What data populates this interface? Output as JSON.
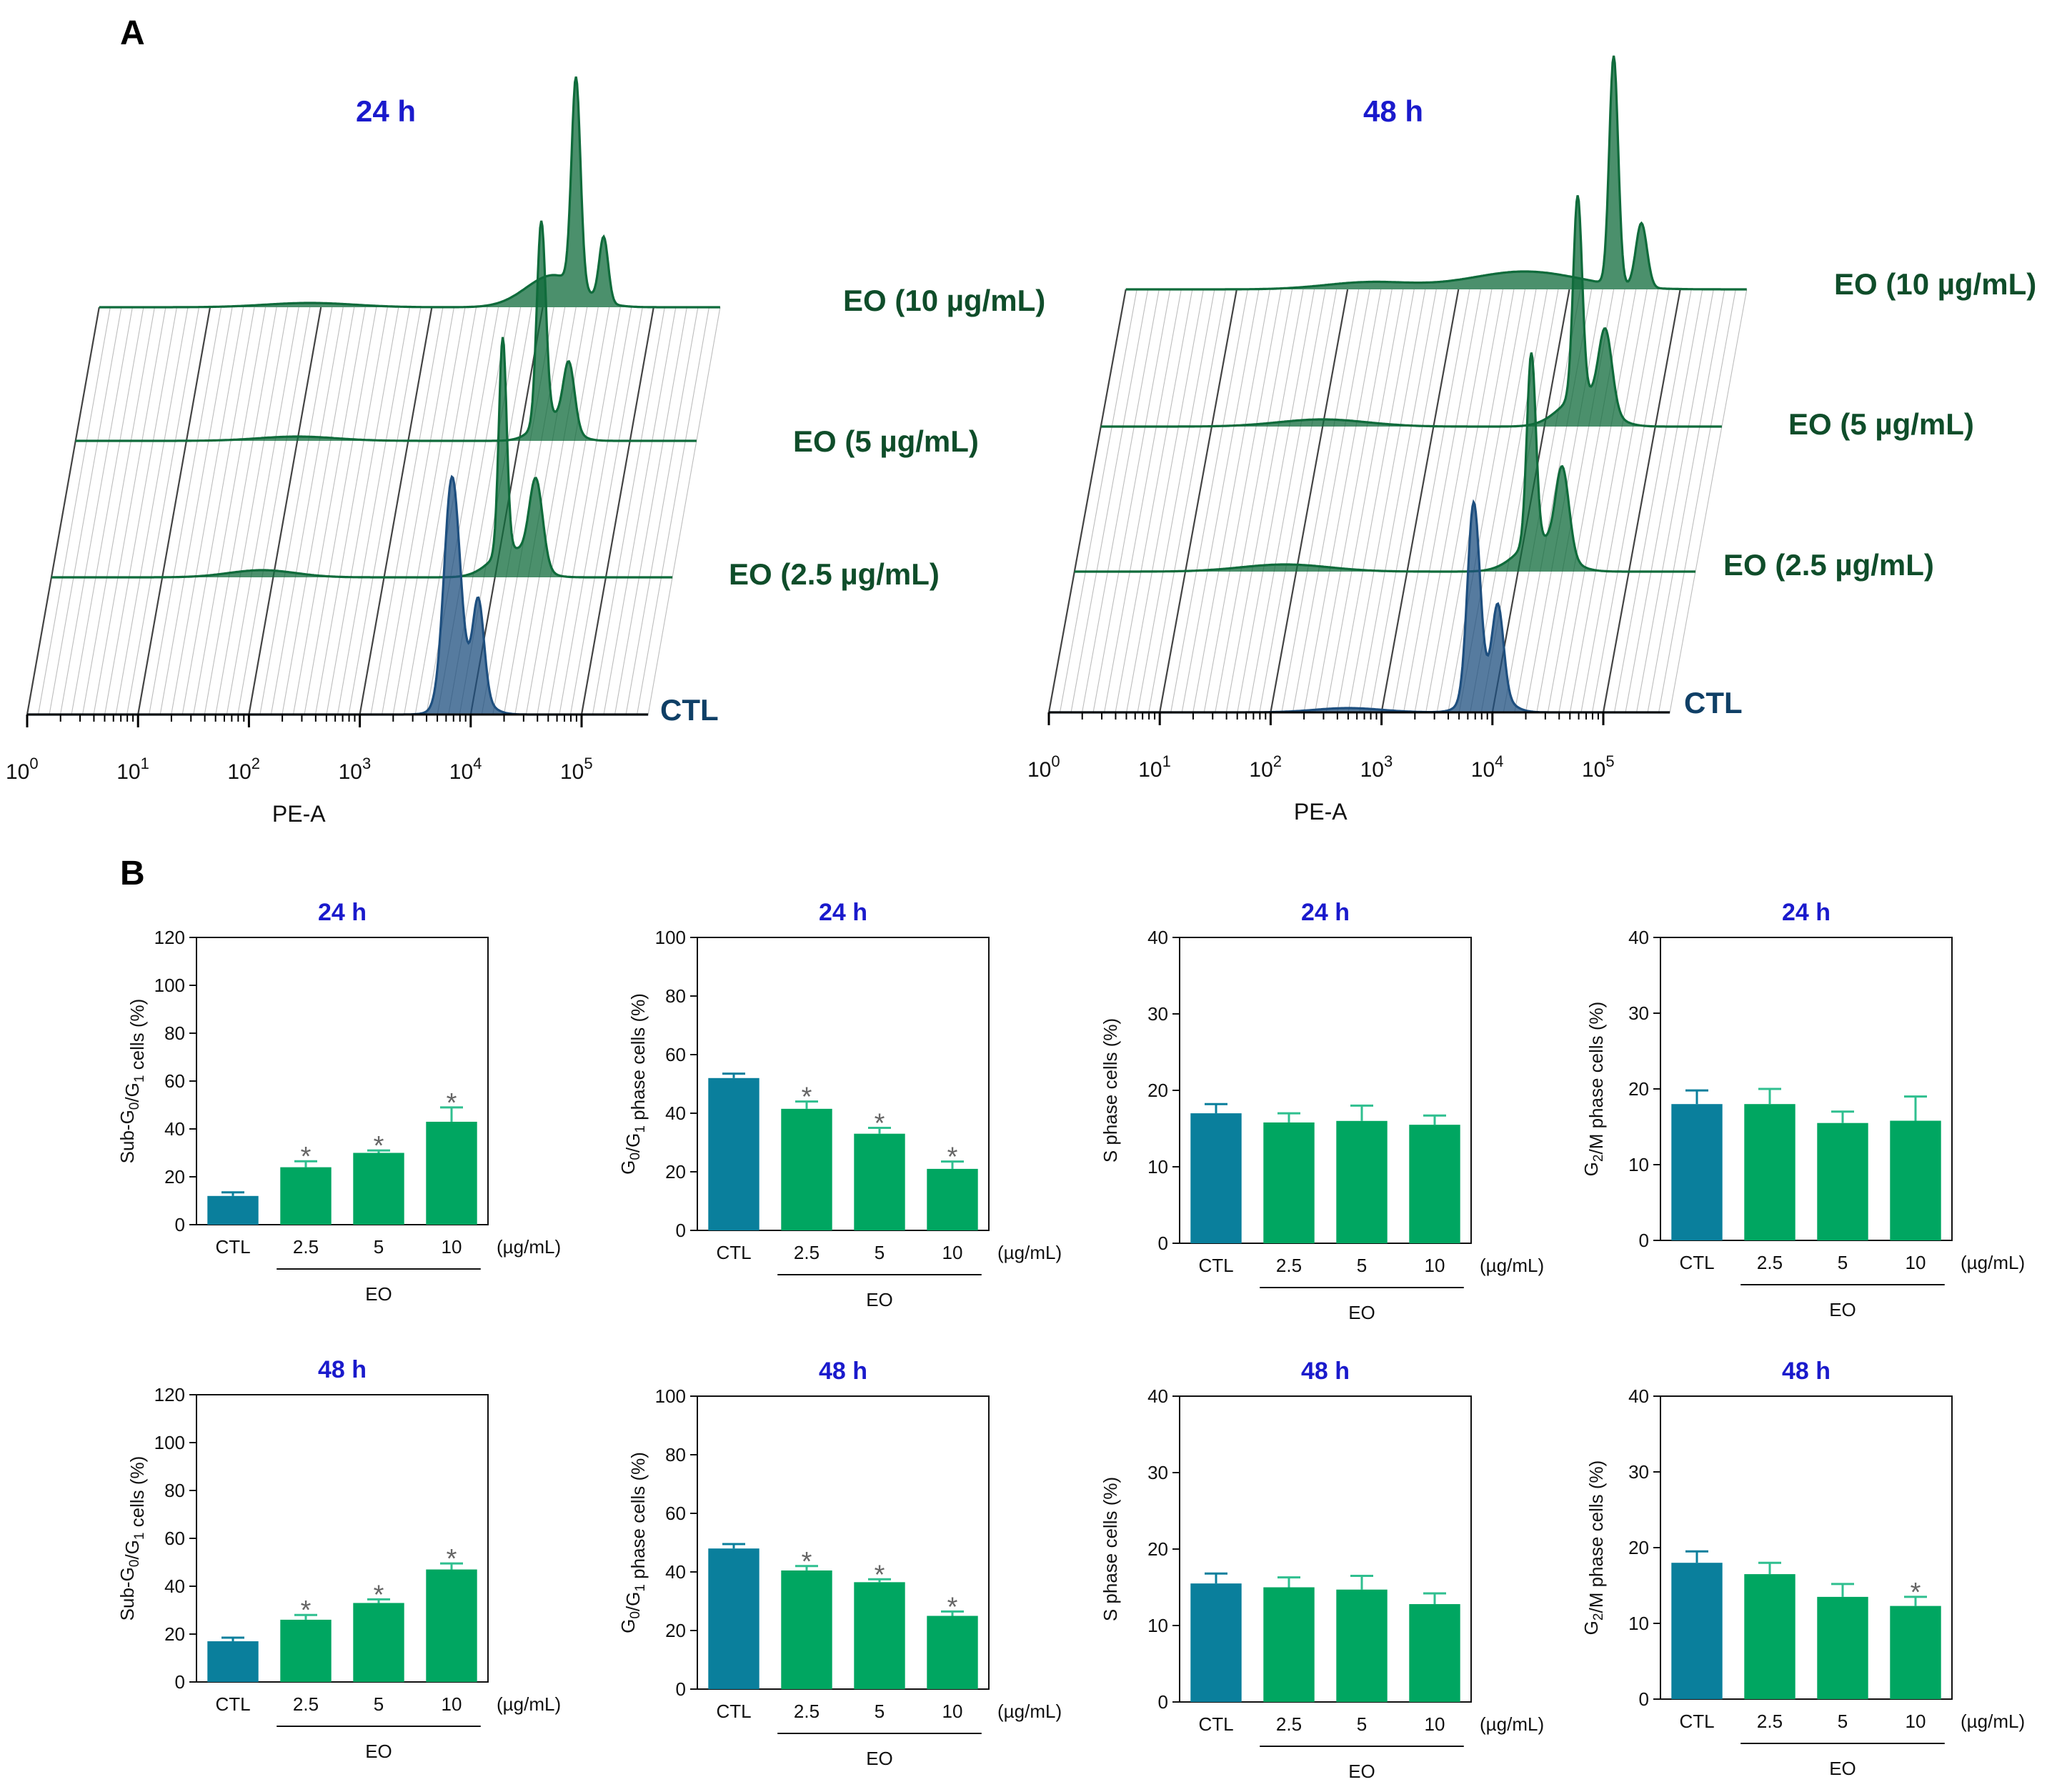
{
  "panel_a": {
    "letter": "A",
    "axis_label": "PE-A",
    "decade_base": "10",
    "decade_exponents": [
      "0",
      "1",
      "2",
      "3",
      "4",
      "5"
    ],
    "trace_labels": [
      "CTL",
      "EO (2.5 µg/mL)",
      "EO (5 µg/mL)",
      "EO (10 µg/mL)"
    ],
    "plots": [
      {
        "time": "24 h"
      },
      {
        "time": "48 h"
      }
    ]
  },
  "panel_b": {
    "letter": "B",
    "x_unit": "(µg/mL)",
    "group_label": "EO"
  },
  "colors": {
    "ctl": "#0a7f9c",
    "eo": "#00a661",
    "error_ctl": "#0a7f9c",
    "error_eo": "#2fbf8f",
    "histogram_ctl": "#1e4f7f",
    "histogram_eo": "#0f6b3b",
    "time_label": "#1a1acc",
    "trace_label": "#0f4d2a"
  },
  "chart_data": [
    {
      "type": "bar",
      "title": "24 h",
      "ylabel": "Sub-G0/G1 cells (%)",
      "ylim": [
        0,
        120
      ],
      "yticks": [
        0,
        20,
        40,
        60,
        80,
        100,
        120
      ],
      "categories": [
        "CTL",
        "2.5",
        "5",
        "10"
      ],
      "values": [
        12,
        24,
        30,
        43
      ],
      "errors": [
        1.5,
        2.5,
        1,
        6
      ],
      "significant": [
        false,
        true,
        true,
        true
      ]
    },
    {
      "type": "bar",
      "title": "24 h",
      "ylabel": "G0/G1 phase cells (%)",
      "ylim": [
        0,
        100
      ],
      "yticks": [
        0,
        20,
        40,
        60,
        80,
        100
      ],
      "categories": [
        "CTL",
        "2.5",
        "5",
        "10"
      ],
      "values": [
        52,
        41.5,
        33,
        21
      ],
      "errors": [
        1.5,
        2.5,
        2,
        2.5
      ],
      "significant": [
        false,
        true,
        true,
        true
      ]
    },
    {
      "type": "bar",
      "title": "24 h",
      "ylabel": "S phase cells (%)",
      "ylim": [
        0,
        40
      ],
      "yticks": [
        0,
        10,
        20,
        30,
        40
      ],
      "categories": [
        "CTL",
        "2.5",
        "5",
        "10"
      ],
      "values": [
        17,
        15.8,
        16,
        15.5
      ],
      "errors": [
        1.2,
        1.2,
        2,
        1.2
      ],
      "significant": [
        false,
        false,
        false,
        false
      ]
    },
    {
      "type": "bar",
      "title": "24 h",
      "ylabel": "G2/M phase cells (%)",
      "ylim": [
        0,
        40
      ],
      "yticks": [
        0,
        10,
        20,
        30,
        40
      ],
      "categories": [
        "CTL",
        "2.5",
        "5",
        "10"
      ],
      "values": [
        18,
        18,
        15.5,
        15.8
      ],
      "errors": [
        1.8,
        2,
        1.5,
        3.2
      ],
      "significant": [
        false,
        false,
        false,
        false
      ]
    },
    {
      "type": "bar",
      "title": "48 h",
      "ylabel": "Sub-G0/G1 cells (%)",
      "ylim": [
        0,
        120
      ],
      "yticks": [
        0,
        20,
        40,
        60,
        80,
        100,
        120
      ],
      "categories": [
        "CTL",
        "2.5",
        "5",
        "10"
      ],
      "values": [
        17,
        26,
        33,
        47
      ],
      "errors": [
        1.5,
        2,
        1.5,
        2.5
      ],
      "significant": [
        false,
        true,
        true,
        true
      ]
    },
    {
      "type": "bar",
      "title": "48 h",
      "ylabel": "G0/G1 phase cells (%)",
      "ylim": [
        0,
        100
      ],
      "yticks": [
        0,
        20,
        40,
        60,
        80,
        100
      ],
      "categories": [
        "CTL",
        "2.5",
        "5",
        "10"
      ],
      "values": [
        48,
        40.5,
        36.5,
        25
      ],
      "errors": [
        1.5,
        1.5,
        1,
        1.5
      ],
      "significant": [
        false,
        true,
        true,
        true
      ]
    },
    {
      "type": "bar",
      "title": "48 h",
      "ylabel": "S phase cells (%)",
      "ylim": [
        0,
        40
      ],
      "yticks": [
        0,
        10,
        20,
        30,
        40
      ],
      "categories": [
        "CTL",
        "2.5",
        "5",
        "10"
      ],
      "values": [
        15.5,
        15,
        14.7,
        12.8
      ],
      "errors": [
        1.3,
        1.3,
        1.8,
        1.4
      ],
      "significant": [
        false,
        false,
        false,
        false
      ]
    },
    {
      "type": "bar",
      "title": "48 h",
      "ylabel": "G2/M phase cells (%)",
      "ylim": [
        0,
        40
      ],
      "yticks": [
        0,
        10,
        20,
        30,
        40
      ],
      "categories": [
        "CTL",
        "2.5",
        "5",
        "10"
      ],
      "values": [
        18,
        16.5,
        13.5,
        12.3
      ],
      "errors": [
        1.5,
        1.5,
        1.7,
        1.2
      ],
      "significant": [
        false,
        false,
        false,
        true
      ]
    }
  ]
}
